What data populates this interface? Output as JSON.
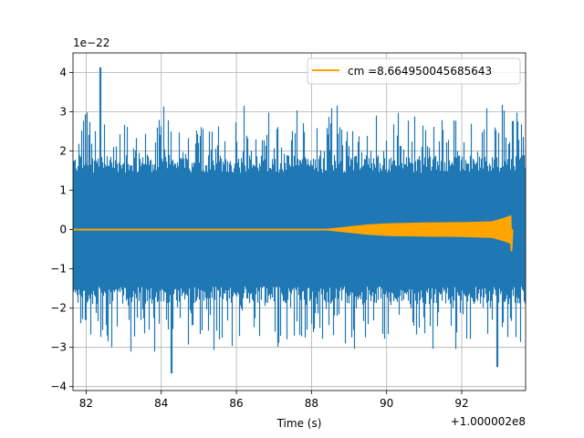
{
  "chart_data": {
    "type": "line",
    "title": "",
    "xlabel": "Time (s)",
    "ylabel": "",
    "xlim": [
      81.65,
      93.7
    ],
    "ylim": [
      -4.1,
      4.5
    ],
    "x_offset_label": "+1.000002e8",
    "y_scale_label": "1e−22",
    "x_ticks": [
      82,
      84,
      86,
      88,
      90,
      92
    ],
    "x_tick_labels": [
      "82",
      "84",
      "86",
      "88",
      "90",
      "92"
    ],
    "y_ticks": [
      -4,
      -3,
      -2,
      -1,
      0,
      1,
      2,
      3,
      4
    ],
    "y_tick_labels": [
      "−4",
      "−3",
      "−2",
      "−1",
      "0",
      "1",
      "2",
      "3",
      "4"
    ],
    "grid": true,
    "legend_position": "top-right",
    "series": [
      {
        "name": "",
        "color": "#1f77b4",
        "kind": "noise",
        "x_range": [
          81.65,
          93.7
        ],
        "typical_envelope": [
          -1.8,
          1.8
        ],
        "extremes": [
          [
            82.37,
            4.13
          ],
          [
            84.28,
            -3.66
          ],
          [
            92.95,
            -3.5
          ],
          [
            82.0,
            -2.3
          ]
        ]
      },
      {
        "name": "cm =8.664950045685643",
        "color": "#ffa500",
        "kind": "chirp",
        "x_range": [
          81.65,
          93.35
        ],
        "envelope_points": [
          [
            81.65,
            0.0
          ],
          [
            88.3,
            0.0
          ],
          [
            88.8,
            0.05
          ],
          [
            89.5,
            0.12
          ],
          [
            90.0,
            0.15
          ],
          [
            91.0,
            0.17
          ],
          [
            92.0,
            0.18
          ],
          [
            92.8,
            0.2
          ],
          [
            93.1,
            0.28
          ],
          [
            93.3,
            0.35
          ]
        ],
        "merger_dip": [
          93.32,
          -0.55
        ]
      }
    ]
  }
}
